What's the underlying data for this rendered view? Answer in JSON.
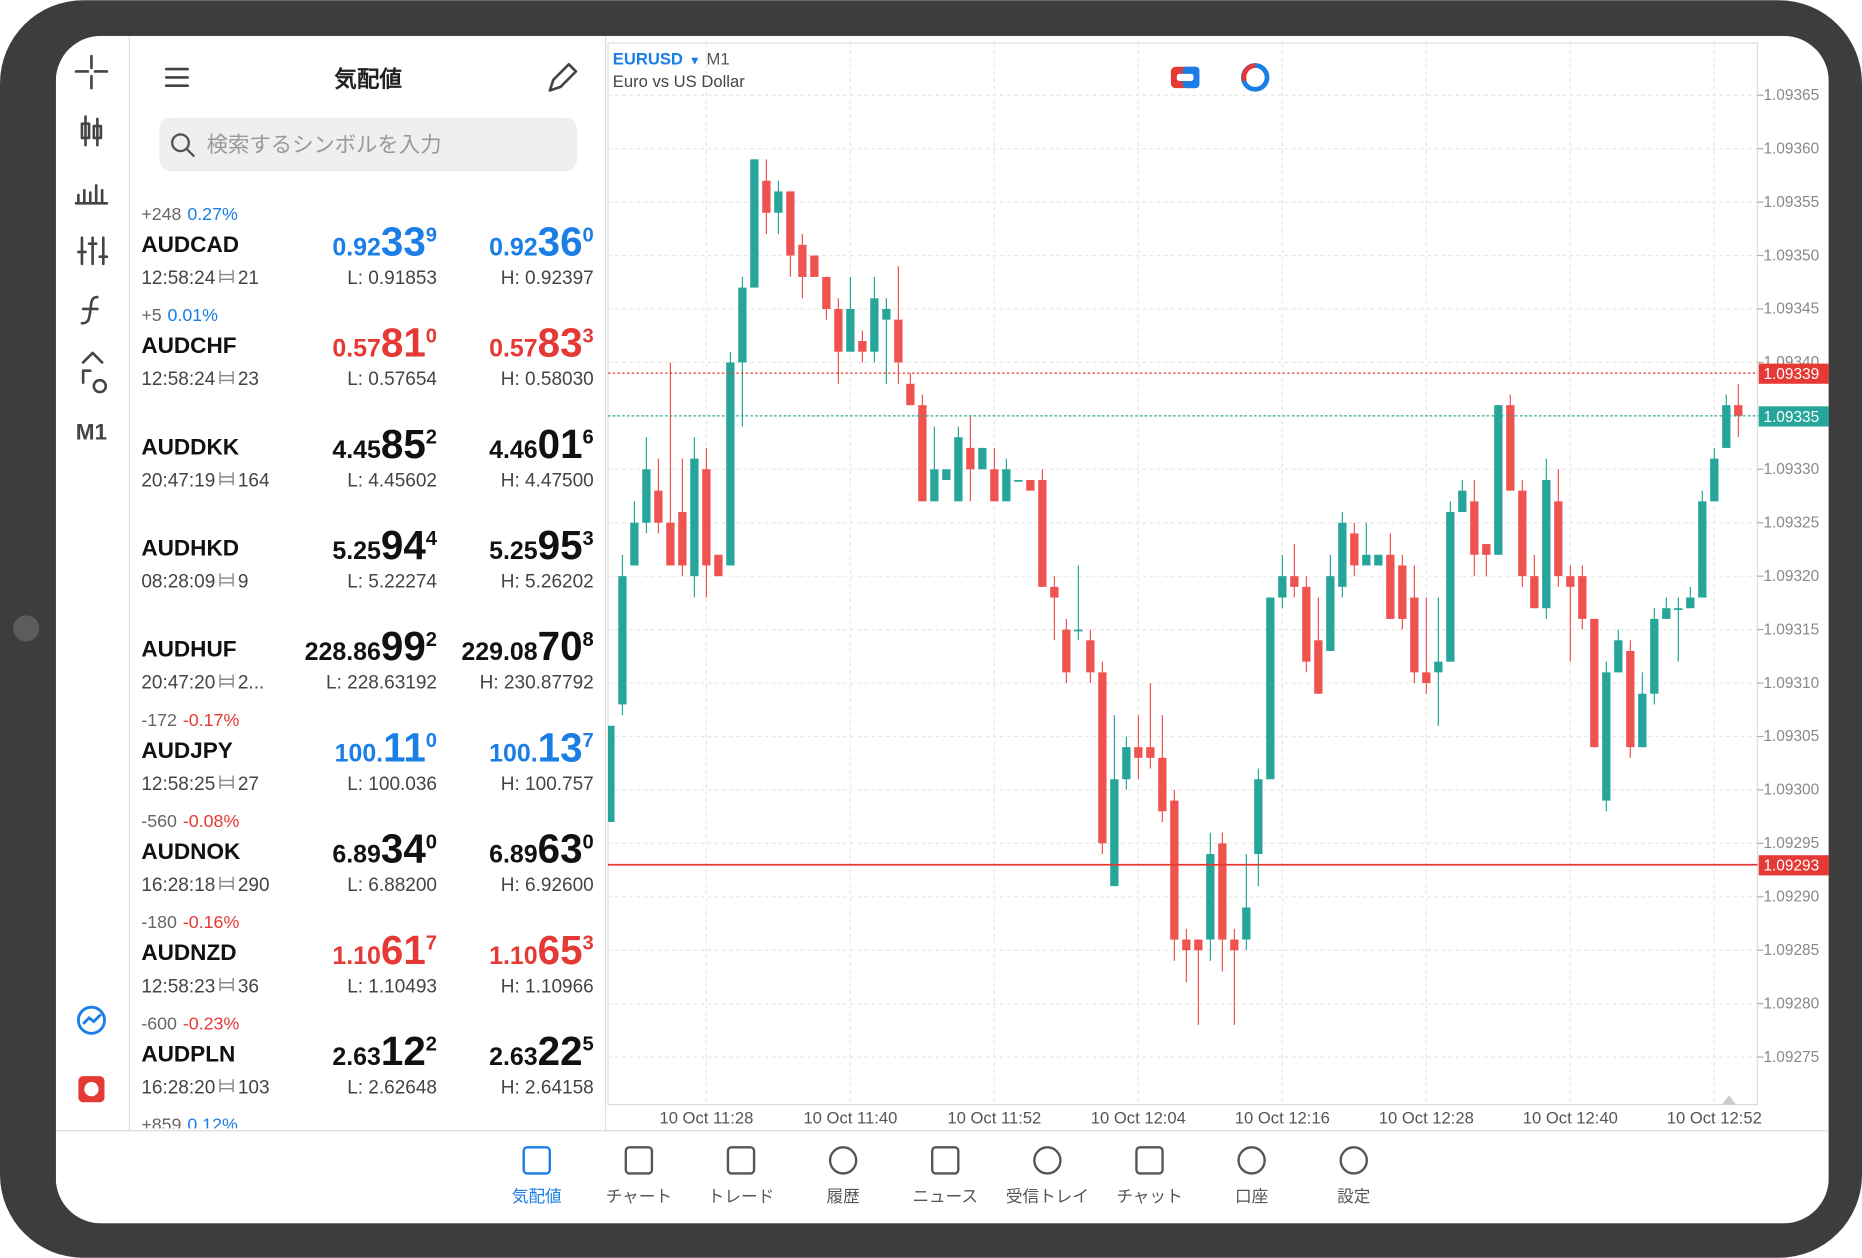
{
  "toolbar": {
    "timeframe": "M1"
  },
  "quotes_panel": {
    "title": "気配値",
    "search_placeholder": "検索するシンボルを入力",
    "rows": [
      {
        "change": "+248",
        "percent": "0.27%",
        "trend": "up",
        "symbol": "AUDCAD",
        "time": "12:58:24",
        "spread": "21",
        "bid": [
          "0.92",
          "33",
          "9"
        ],
        "ask": [
          "0.92",
          "36",
          "0"
        ],
        "low": "L: 0.91853",
        "high": "H: 0.92397",
        "color": "#1a7ee6"
      },
      {
        "change": "+5",
        "percent": "0.01%",
        "trend": "up",
        "symbol": "AUDCHF",
        "time": "12:58:24",
        "spread": "23",
        "bid": [
          "0.57",
          "81",
          "0"
        ],
        "ask": [
          "0.57",
          "83",
          "3"
        ],
        "low": "L: 0.57654",
        "high": "H: 0.58030",
        "color": "#e53935"
      },
      {
        "symbol": "AUDDKK",
        "time": "20:47:19",
        "spread": "164",
        "bid": [
          "4.45",
          "85",
          "2"
        ],
        "ask": [
          "4.46",
          "01",
          "6"
        ],
        "low": "L: 4.45602",
        "high": "H: 4.47500",
        "color": "#111111"
      },
      {
        "symbol": "AUDHKD",
        "time": "08:28:09",
        "spread": "9",
        "bid": [
          "5.25",
          "94",
          "4"
        ],
        "ask": [
          "5.25",
          "95",
          "3"
        ],
        "low": "L: 5.22274",
        "high": "H: 5.26202",
        "color": "#111111"
      },
      {
        "symbol": "AUDHUF",
        "time": "20:47:20",
        "spread": "2...",
        "bid": [
          "228.86",
          "99",
          "2"
        ],
        "ask": [
          "229.08",
          "70",
          "8"
        ],
        "low": "L: 228.63192",
        "high": "H: 230.87792",
        "color": "#111111"
      },
      {
        "change": "-172",
        "percent": "-0.17%",
        "trend": "down",
        "symbol": "AUDJPY",
        "time": "12:58:25",
        "spread": "27",
        "bid": [
          "100.",
          "11",
          "0"
        ],
        "ask": [
          "100.",
          "13",
          "7"
        ],
        "low": "L: 100.036",
        "high": "H: 100.757",
        "color": "#1a7ee6"
      },
      {
        "change": "-560",
        "percent": "-0.08%",
        "trend": "down",
        "symbol": "AUDNOK",
        "time": "16:28:18",
        "spread": "290",
        "bid": [
          "6.89",
          "34",
          "0"
        ],
        "ask": [
          "6.89",
          "63",
          "0"
        ],
        "low": "L: 6.88200",
        "high": "H: 6.92600",
        "color": "#111111"
      },
      {
        "change": "-180",
        "percent": "-0.16%",
        "trend": "down",
        "symbol": "AUDNZD",
        "time": "12:58:23",
        "spread": "36",
        "bid": [
          "1.10",
          "61",
          "7"
        ],
        "ask": [
          "1.10",
          "65",
          "3"
        ],
        "low": "L: 1.10493",
        "high": "H: 1.10966",
        "color": "#e53935"
      },
      {
        "change": "-600",
        "percent": "-0.23%",
        "trend": "down",
        "symbol": "AUDPLN",
        "time": "16:28:20",
        "spread": "103",
        "bid": [
          "2.63",
          "12",
          "2"
        ],
        "ask": [
          "2.63",
          "22",
          "5"
        ],
        "low": "L: 2.62648",
        "high": "H: 2.64158",
        "color": "#111111"
      }
    ],
    "partial_row": {
      "change": "+859",
      "percent": "0.12%",
      "trend": "up"
    }
  },
  "chart_data": {
    "type": "candlestick",
    "symbol": "EURUSD",
    "timeframe": "M1",
    "subtitle": "Euro vs US Dollar",
    "up_color": "#26a69a",
    "down_color": "#ef5350",
    "grid": true,
    "ylim": [
      1.09271,
      1.0937
    ],
    "yticks": [
      1.09275,
      {
        "value": 1.0928,
        "label": "1.09280"
      },
      1.09285,
      {
        "value": 1.0929,
        "label": "1.09290"
      },
      1.09295,
      {
        "value": 1.093,
        "label": "1.09300"
      },
      1.09305,
      {
        "value": 1.0931,
        "label": "1.09310"
      },
      1.09315,
      {
        "value": 1.0932,
        "label": "1.09320"
      },
      1.09325,
      {
        "value": 1.0933,
        "label": "1.09330"
      },
      1.09335,
      {
        "value": 1.0934,
        "label": "1.09340"
      },
      1.09345,
      {
        "value": 1.0935,
        "label": "1.09350"
      },
      1.09355,
      {
        "value": 1.0936,
        "label": "1.09360"
      },
      1.09365
    ],
    "xlim": [
      -0.2,
      95.6
    ],
    "xticks": [
      {
        "value": 8,
        "label": "10 Oct 11:28"
      },
      {
        "value": 20,
        "label": "10 Oct 11:40"
      },
      {
        "value": 32,
        "label": "10 Oct 11:52"
      },
      {
        "value": 44,
        "label": "10 Oct 12:04"
      },
      {
        "value": 56,
        "label": "10 Oct 12:16"
      },
      {
        "value": 68,
        "label": "10 Oct 12:28"
      },
      {
        "value": 80,
        "label": "10 Oct 12:40"
      },
      {
        "value": 92,
        "label": "10 Oct 12:52"
      }
    ],
    "price_lines": [
      {
        "value": 1.09339,
        "color": "#e53935",
        "style": "dotted"
      },
      {
        "value": 1.09335,
        "color": "#26a69a",
        "style": "dotted"
      },
      {
        "value": 1.09293,
        "color": "#e53935",
        "style": "solid"
      }
    ],
    "ohlc": [
      [
        1.09297,
        1.09306,
        1.09297,
        1.09306
      ],
      [
        1.09308,
        1.09322,
        1.09307,
        1.0932
      ],
      [
        1.09321,
        1.09327,
        1.09321,
        1.09325
      ],
      [
        1.09325,
        1.09333,
        1.09324,
        1.0933
      ],
      [
        1.09328,
        1.09331,
        1.09324,
        1.09325
      ],
      [
        1.09325,
        1.0934,
        1.09321,
        1.09321
      ],
      [
        1.09326,
        1.09331,
        1.0932,
        1.09321
      ],
      [
        1.0932,
        1.09333,
        1.09318,
        1.09331
      ],
      [
        1.0933,
        1.09332,
        1.09318,
        1.09321
      ],
      [
        1.09322,
        1.09322,
        1.0932,
        1.0932
      ],
      [
        1.09321,
        1.09341,
        1.09321,
        1.0934
      ],
      [
        1.0934,
        1.09348,
        1.09334,
        1.09347
      ],
      [
        1.09347,
        1.09359,
        1.09347,
        1.09359
      ],
      [
        1.09357,
        1.09359,
        1.09352,
        1.09354
      ],
      [
        1.09354,
        1.09357,
        1.09352,
        1.09356
      ],
      [
        1.09356,
        1.09356,
        1.09348,
        1.0935
      ],
      [
        1.09351,
        1.09352,
        1.09346,
        1.09348
      ],
      [
        1.0935,
        1.0935,
        1.09348,
        1.09348
      ],
      [
        1.09348,
        1.09348,
        1.09344,
        1.09345
      ],
      [
        1.09345,
        1.09346,
        1.09338,
        1.09341
      ],
      [
        1.09341,
        1.09348,
        1.09341,
        1.09345
      ],
      [
        1.09342,
        1.09343,
        1.0934,
        1.09341
      ],
      [
        1.09341,
        1.09348,
        1.0934,
        1.09346
      ],
      [
        1.09344,
        1.09346,
        1.09338,
        1.09345
      ],
      [
        1.09344,
        1.09349,
        1.09338,
        1.0934
      ],
      [
        1.09338,
        1.09339,
        1.09336,
        1.09336
      ],
      [
        1.09336,
        1.09337,
        1.09327,
        1.09327
      ],
      [
        1.09327,
        1.09334,
        1.09327,
        1.0933
      ],
      [
        1.09329,
        1.0933,
        1.09329,
        1.0933
      ],
      [
        1.09327,
        1.09334,
        1.09327,
        1.09333
      ],
      [
        1.09332,
        1.09335,
        1.09327,
        1.0933
      ],
      [
        1.0933,
        1.09332,
        1.0933,
        1.09332
      ],
      [
        1.0933,
        1.09332,
        1.09327,
        1.09327
      ],
      [
        1.09327,
        1.09331,
        1.09327,
        1.0933
      ],
      [
        1.09329,
        1.09329,
        1.09329,
        1.09329
      ],
      [
        1.09329,
        1.09329,
        1.09328,
        1.09328
      ],
      [
        1.09329,
        1.0933,
        1.09319,
        1.09319
      ],
      [
        1.09319,
        1.0932,
        1.09314,
        1.09318
      ],
      [
        1.09315,
        1.09316,
        1.0931,
        1.09311
      ],
      [
        1.09315,
        1.09321,
        1.09314,
        1.09315
      ],
      [
        1.09314,
        1.09315,
        1.0931,
        1.09311
      ],
      [
        1.09311,
        1.09312,
        1.09294,
        1.09295
      ],
      [
        1.09291,
        1.09307,
        1.09291,
        1.09301
      ],
      [
        1.09301,
        1.09305,
        1.093,
        1.09304
      ],
      [
        1.09304,
        1.09307,
        1.09301,
        1.09303
      ],
      [
        1.09304,
        1.0931,
        1.09302,
        1.09303
      ],
      [
        1.09303,
        1.09307,
        1.09297,
        1.09298
      ],
      [
        1.09299,
        1.093,
        1.09284,
        1.09286
      ],
      [
        1.09286,
        1.09287,
        1.09282,
        1.09285
      ],
      [
        1.09286,
        1.09286,
        1.09278,
        1.09285
      ],
      [
        1.09286,
        1.09296,
        1.09284,
        1.09294
      ],
      [
        1.09295,
        1.09296,
        1.09283,
        1.09286
      ],
      [
        1.09286,
        1.09287,
        1.09278,
        1.09285
      ],
      [
        1.09286,
        1.09294,
        1.09285,
        1.09289
      ],
      [
        1.09294,
        1.09302,
        1.09291,
        1.09301
      ],
      [
        1.09301,
        1.09318,
        1.09301,
        1.09318
      ],
      [
        1.09318,
        1.09322,
        1.09317,
        1.0932
      ],
      [
        1.0932,
        1.09323,
        1.09318,
        1.09319
      ],
      [
        1.09319,
        1.0932,
        1.09311,
        1.09312
      ],
      [
        1.09314,
        1.09318,
        1.09309,
        1.09309
      ],
      [
        1.09313,
        1.09322,
        1.09313,
        1.0932
      ],
      [
        1.09319,
        1.09326,
        1.09318,
        1.09325
      ],
      [
        1.09324,
        1.09325,
        1.0932,
        1.09321
      ],
      [
        1.09321,
        1.09325,
        1.09321,
        1.09322
      ],
      [
        1.09321,
        1.09322,
        1.09321,
        1.09322
      ],
      [
        1.09322,
        1.09324,
        1.09316,
        1.09316
      ],
      [
        1.09321,
        1.09322,
        1.09315,
        1.09316
      ],
      [
        1.09318,
        1.09321,
        1.0931,
        1.09311
      ],
      [
        1.09311,
        1.09318,
        1.09309,
        1.0931
      ],
      [
        1.09311,
        1.09318,
        1.09306,
        1.09312
      ],
      [
        1.09312,
        1.09327,
        1.09312,
        1.09326
      ],
      [
        1.09326,
        1.09329,
        1.09326,
        1.09328
      ],
      [
        1.09327,
        1.09329,
        1.0932,
        1.09322
      ],
      [
        1.09323,
        1.09323,
        1.0932,
        1.09322
      ],
      [
        1.09322,
        1.09336,
        1.09322,
        1.09336
      ],
      [
        1.09336,
        1.09337,
        1.09328,
        1.09328
      ],
      [
        1.09328,
        1.09329,
        1.09319,
        1.0932
      ],
      [
        1.0932,
        1.09322,
        1.09317,
        1.09317
      ],
      [
        1.09317,
        1.09331,
        1.09316,
        1.09329
      ],
      [
        1.09327,
        1.0933,
        1.09319,
        1.0932
      ],
      [
        1.0932,
        1.09321,
        1.09312,
        1.09319
      ],
      [
        1.0932,
        1.09321,
        1.09315,
        1.09316
      ],
      [
        1.09316,
        1.09316,
        1.09304,
        1.09304
      ],
      [
        1.09299,
        1.09312,
        1.09298,
        1.09311
      ],
      [
        1.09311,
        1.09315,
        1.09311,
        1.09314
      ],
      [
        1.09313,
        1.09314,
        1.09303,
        1.09304
      ],
      [
        1.09304,
        1.09311,
        1.09304,
        1.09309
      ],
      [
        1.09309,
        1.09317,
        1.09308,
        1.09316
      ],
      [
        1.09316,
        1.09318,
        1.09316,
        1.09317
      ],
      [
        1.09317,
        1.09318,
        1.09312,
        1.09317
      ],
      [
        1.09317,
        1.09319,
        1.09317,
        1.09318
      ],
      [
        1.09318,
        1.09328,
        1.09318,
        1.09327
      ],
      [
        1.09327,
        1.09332,
        1.09327,
        1.09331
      ],
      [
        1.09332,
        1.09337,
        1.09332,
        1.09336
      ],
      [
        1.09336,
        1.09338,
        1.09333,
        1.09335
      ]
    ]
  },
  "nav": {
    "active": 0,
    "items": [
      "気配値",
      "チャート",
      "トレード",
      "履歴",
      "ニュース",
      "受信トレイ",
      "チャット",
      "口座",
      "設定"
    ]
  }
}
